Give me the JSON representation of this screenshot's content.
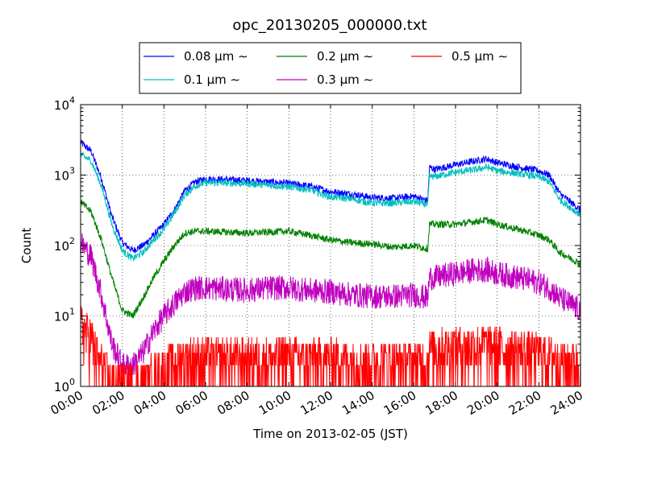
{
  "chart_data": {
    "type": "line",
    "title": "opc_20130205_000000.txt",
    "xlabel": "Time on 2013-02-05 (JST)",
    "ylabel": "Count",
    "yscale": "log",
    "ylim": [
      1,
      10000
    ],
    "xlim": [
      "00:00",
      "24:00"
    ],
    "x_ticks": [
      "00:00",
      "02:00",
      "04:00",
      "06:00",
      "08:00",
      "10:00",
      "12:00",
      "14:00",
      "16:00",
      "18:00",
      "20:00",
      "22:00",
      "24:00"
    ],
    "y_ticks": [
      {
        "base": "10",
        "exp": "0"
      },
      {
        "base": "10",
        "exp": "1"
      },
      {
        "base": "10",
        "exp": "2"
      },
      {
        "base": "10",
        "exp": "3"
      },
      {
        "base": "10",
        "exp": "4"
      }
    ],
    "grid": true,
    "legend_position": "top-center",
    "x": [
      "00:00",
      "00:30",
      "01:00",
      "01:30",
      "02:00",
      "02:30",
      "03:00",
      "03:30",
      "04:00",
      "04:30",
      "05:00",
      "05:30",
      "06:00",
      "07:00",
      "08:00",
      "09:00",
      "10:00",
      "11:00",
      "12:00",
      "13:00",
      "14:00",
      "15:00",
      "16:00",
      "16:40",
      "16:45",
      "17:00",
      "18:00",
      "19:00",
      "19:30",
      "20:00",
      "21:00",
      "22:00",
      "22:30",
      "23:00",
      "24:00"
    ],
    "series": [
      {
        "name": "0.08 μm ∼",
        "color": "#0000ff",
        "values": [
          2900,
          2200,
          900,
          260,
          110,
          85,
          100,
          140,
          200,
          320,
          600,
          800,
          880,
          860,
          840,
          800,
          760,
          700,
          580,
          540,
          480,
          470,
          500,
          430,
          1300,
          1200,
          1400,
          1600,
          1700,
          1500,
          1300,
          1150,
          1000,
          550,
          320
        ]
      },
      {
        "name": "0.1 μm ∼",
        "color": "#00bfbf",
        "values": [
          1950,
          1600,
          700,
          200,
          85,
          65,
          80,
          120,
          170,
          290,
          520,
          700,
          780,
          770,
          760,
          720,
          680,
          620,
          490,
          460,
          400,
          400,
          420,
          380,
          950,
          950,
          1100,
          1200,
          1300,
          1150,
          1050,
          950,
          800,
          450,
          270
        ]
      },
      {
        "name": "0.2 μm ∼",
        "color": "#008000",
        "values": [
          420,
          300,
          120,
          35,
          12,
          10,
          18,
          35,
          60,
          100,
          150,
          160,
          160,
          155,
          150,
          155,
          160,
          140,
          120,
          110,
          105,
          95,
          100,
          90,
          200,
          200,
          200,
          220,
          230,
          200,
          170,
          140,
          120,
          80,
          55
        ]
      },
      {
        "name": "0.3 μm ∼",
        "color": "#bf00bf",
        "values": [
          110,
          70,
          20,
          4,
          2,
          2,
          3,
          6,
          10,
          15,
          22,
          25,
          25,
          24,
          23,
          25,
          25,
          23,
          22,
          20,
          19,
          19,
          20,
          18,
          35,
          35,
          40,
          45,
          45,
          40,
          35,
          30,
          25,
          18,
          12
        ]
      },
      {
        "name": "0.5 μm ∼",
        "color": "#ff0000",
        "values": [
          8,
          5,
          2,
          1.3,
          1.2,
          1.1,
          1.2,
          1.5,
          1.8,
          2.2,
          2.5,
          2.6,
          2.6,
          2.6,
          2.5,
          2.6,
          2.7,
          2.6,
          2.5,
          2.4,
          2.4,
          2.3,
          2.4,
          2.3,
          3.5,
          3.5,
          3.8,
          4,
          4,
          3.7,
          3.3,
          3,
          2.8,
          2.4,
          2.2
        ]
      }
    ]
  }
}
